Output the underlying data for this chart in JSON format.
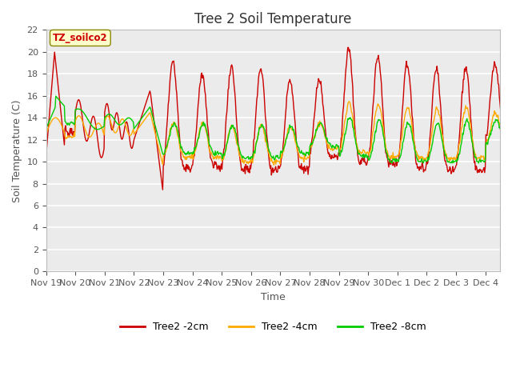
{
  "title": "Tree 2 Soil Temperature",
  "xlabel": "Time",
  "ylabel": "Soil Temperature (C)",
  "ylim": [
    0,
    22
  ],
  "yticks": [
    0,
    2,
    4,
    6,
    8,
    10,
    12,
    14,
    16,
    18,
    20,
    22
  ],
  "annotation_text": "TZ_soilco2",
  "annotation_color": "#cc0000",
  "annotation_bg": "#ffffcc",
  "line_2cm_color": "#cc0000",
  "line_4cm_color": "#ffaa00",
  "line_8cm_color": "#00cc00",
  "legend_labels": [
    "Tree2 -2cm",
    "Tree2 -4cm",
    "Tree2 -8cm"
  ],
  "plot_bg_color": "#ebebeb",
  "title_fontsize": 12,
  "axis_fontsize": 9,
  "tick_fontsize": 8
}
